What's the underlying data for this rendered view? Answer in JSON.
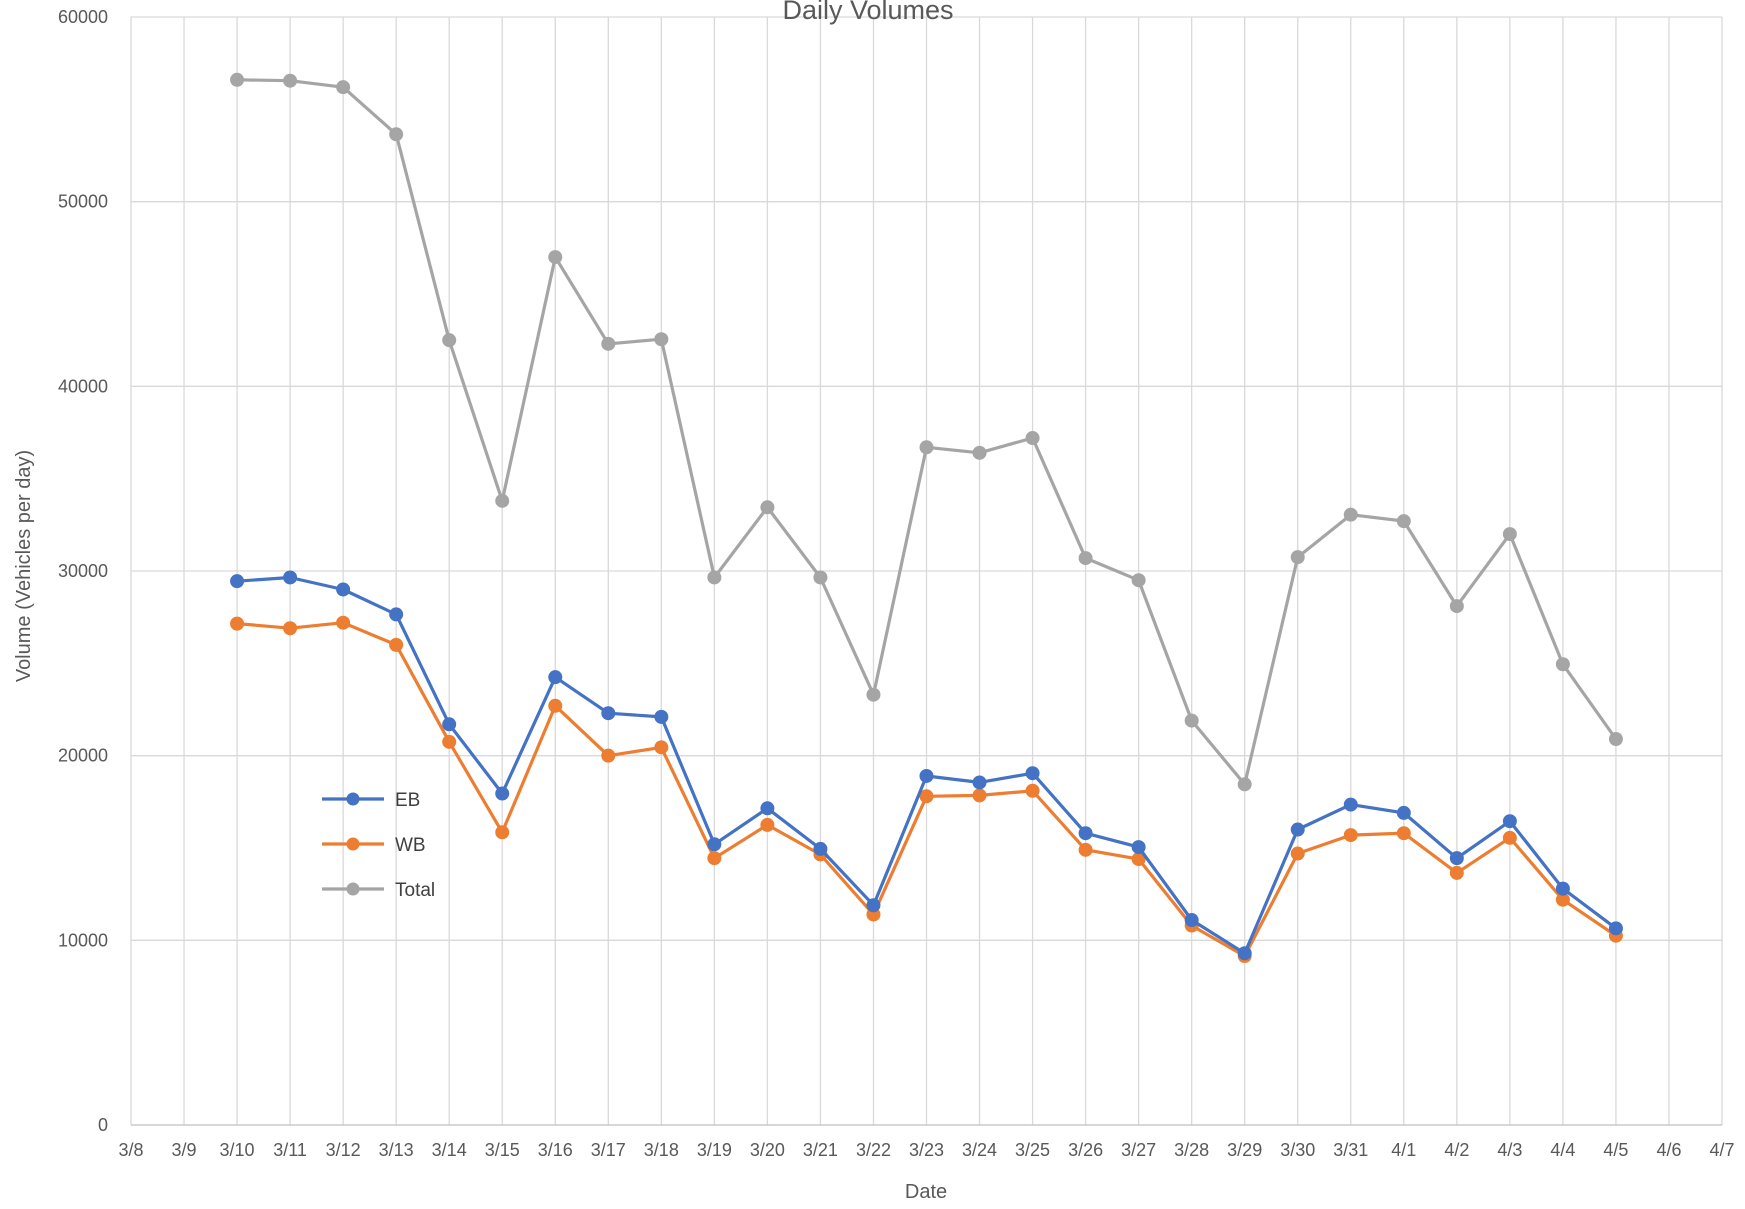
{
  "chart_data": {
    "type": "line",
    "title": "Daily Volumes",
    "xlabel": "Date",
    "ylabel": "Volume (Vehicles per day)",
    "ylim": [
      0,
      60000
    ],
    "yticks": [
      0,
      10000,
      20000,
      30000,
      40000,
      50000,
      60000
    ],
    "grid": true,
    "legend_position": "left",
    "categories": [
      "3/8",
      "3/9",
      "3/10",
      "3/11",
      "3/12",
      "3/13",
      "3/14",
      "3/15",
      "3/16",
      "3/17",
      "3/18",
      "3/19",
      "3/20",
      "3/21",
      "3/22",
      "3/23",
      "3/24",
      "3/25",
      "3/26",
      "3/27",
      "3/28",
      "3/29",
      "3/30",
      "3/31",
      "4/1",
      "4/2",
      "4/3",
      "4/4",
      "4/5",
      "4/6",
      "4/7"
    ],
    "series": [
      {
        "name": "EB",
        "color": "#4472C4",
        "values": [
          null,
          null,
          29450,
          29650,
          29000,
          27650,
          21700,
          17950,
          24250,
          22300,
          22100,
          15200,
          17150,
          14950,
          11900,
          18900,
          18550,
          19050,
          15800,
          15050,
          11100,
          9300,
          16000,
          17350,
          16900,
          14450,
          16450,
          12800,
          10650,
          null,
          null
        ]
      },
      {
        "name": "WB",
        "color": "#ED7D31",
        "values": [
          null,
          null,
          27150,
          26900,
          27200,
          26000,
          20750,
          15850,
          22700,
          20000,
          20450,
          14450,
          16250,
          14650,
          11400,
          17800,
          17850,
          18100,
          14900,
          14400,
          10800,
          9150,
          14700,
          15700,
          15800,
          13650,
          15550,
          12200,
          10250,
          null,
          null
        ]
      },
      {
        "name": "Total",
        "color": "#A5A5A5",
        "values": [
          null,
          null,
          56600,
          56550,
          56200,
          53650,
          42500,
          33800,
          47000,
          42300,
          42550,
          29650,
          33450,
          29650,
          23300,
          36700,
          36400,
          37200,
          30700,
          29500,
          21900,
          18450,
          30750,
          33050,
          32700,
          28100,
          32000,
          24950,
          20900,
          null,
          null
        ]
      }
    ]
  }
}
